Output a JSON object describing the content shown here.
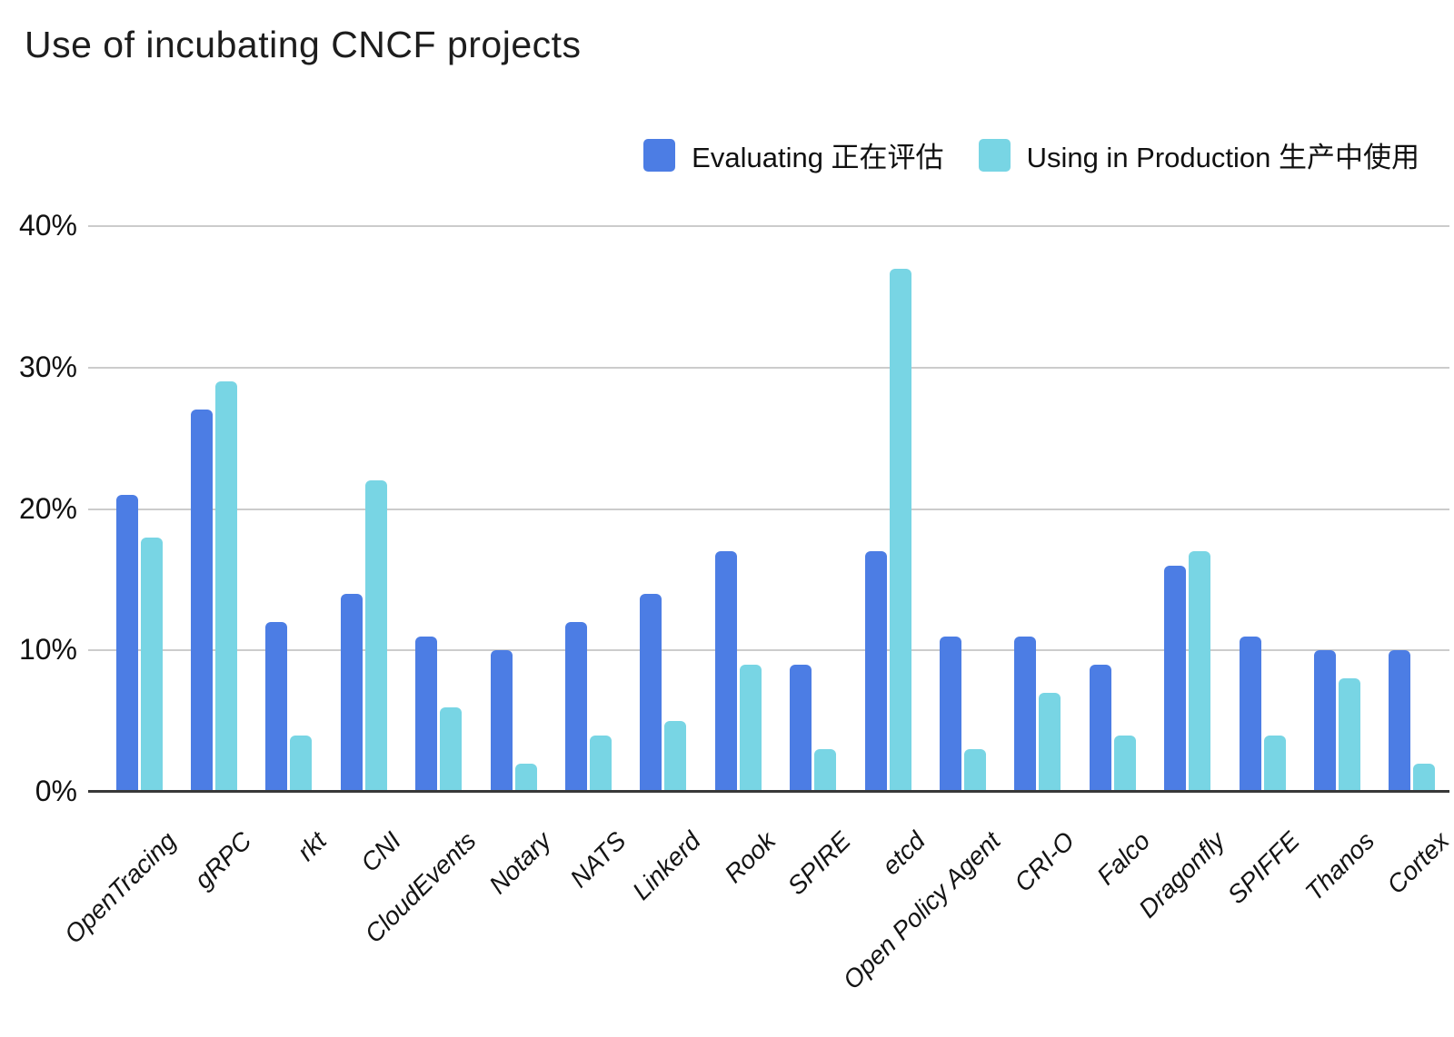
{
  "title": "Use of incubating CNCF projects",
  "y_axis": {
    "tick_labels": [
      "0%",
      "10%",
      "20%",
      "30%",
      "40%"
    ],
    "tick_values": [
      0,
      10,
      20,
      30,
      40
    ]
  },
  "colors": {
    "evaluating": "#4C7DE4",
    "production": "#78D5E4",
    "gridline": "#cccccc",
    "axis_line": "#383838",
    "text": "#111111"
  },
  "chart_data": {
    "type": "bar",
    "title": "Use of incubating CNCF projects",
    "categories": [
      "OpenTracing",
      "gRPC",
      "rkt",
      "CNI",
      "CloudEvents",
      "Notary",
      "NATS",
      "Linkerd",
      "Rook",
      "SPIRE",
      "etcd",
      "Open Policy Agent",
      "CRI-O",
      "Falco",
      "Dragonfly",
      "SPIFFE",
      "Thanos",
      "Cortex"
    ],
    "series": [
      {
        "name": "Evaluating 正在评估",
        "color": "#4C7DE4",
        "values": [
          21,
          27,
          12,
          14,
          11,
          10,
          12,
          14,
          17,
          9,
          17,
          11,
          11,
          9,
          16,
          11,
          10,
          10
        ]
      },
      {
        "name": "Using in Production 生产中使用",
        "color": "#78D5E4",
        "values": [
          18,
          29,
          4,
          22,
          6,
          2,
          4,
          5,
          9,
          3,
          37,
          3,
          7,
          4,
          17,
          4,
          8,
          2
        ]
      }
    ],
    "xlabel": "",
    "ylabel": "",
    "ylim": [
      0,
      40
    ],
    "ytick_step": 10,
    "grid": true,
    "legend_position": "top-right",
    "unit": "%"
  }
}
